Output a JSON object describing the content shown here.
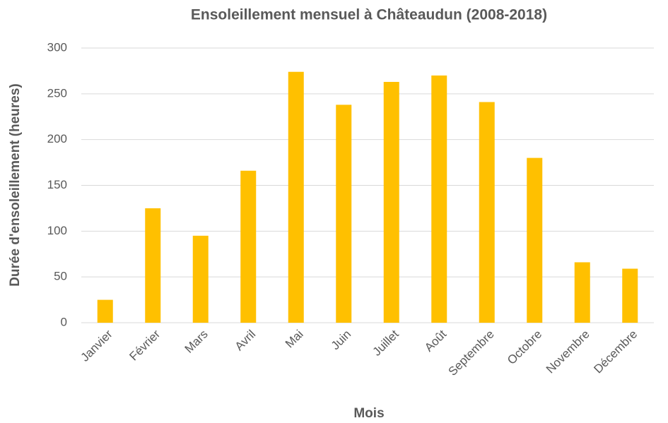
{
  "chart_data": {
    "type": "bar",
    "title": "Ensoleillement mensuel à Châteaudun (2008-2018)",
    "x_label": "Mois",
    "y_label": "Durée d'ensoleillement (heures)",
    "categories": [
      "Janvier",
      "Février",
      "Mars",
      "Avril",
      "Mai",
      "Juin",
      "Juillet",
      "Août",
      "Septembre",
      "Octobre",
      "Novembre",
      "Décembre"
    ],
    "values": [
      25,
      125,
      95,
      166,
      274,
      238,
      263,
      270,
      241,
      180,
      66,
      59
    ],
    "color": "#ffc000",
    "ylim": [
      0,
      300
    ],
    "yticks": [
      0,
      50,
      100,
      150,
      200,
      250,
      300
    ],
    "grid": true
  }
}
